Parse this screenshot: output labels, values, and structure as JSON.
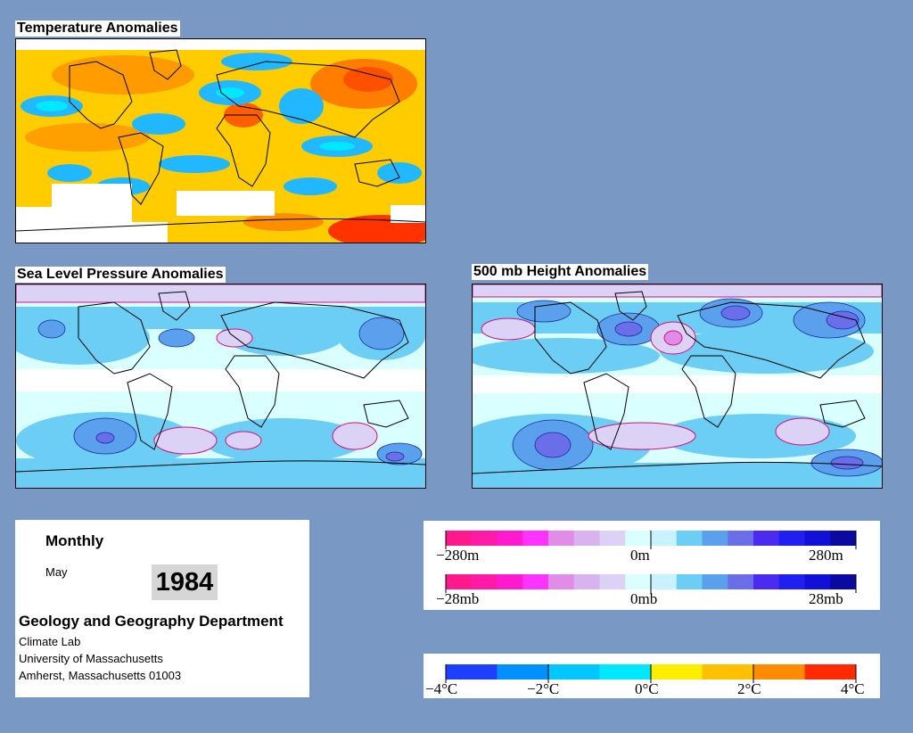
{
  "maps": {
    "temperature": {
      "title": "Temperature Anomalies"
    },
    "slp": {
      "title": "Sea Level Pressure Anomalies"
    },
    "height": {
      "title": "500 mb Height Anomalies"
    }
  },
  "info": {
    "frequency": "Monthly",
    "month": "May",
    "year": "1984",
    "department": "Geology and Geography Department",
    "address_lines": [
      "Climate Lab",
      "University of Massachusetts",
      "Amherst, Massachusetts 01003"
    ]
  },
  "legends": {
    "height": {
      "min_label": "−280m",
      "mid_label": "0m",
      "max_label": "280m"
    },
    "pressure": {
      "min_label": "−28mb",
      "mid_label": "0mb",
      "max_label": "28mb"
    },
    "temperature": {
      "labels": [
        "−4°C",
        "−2°C",
        "0°C",
        "2°C",
        "4°C"
      ]
    }
  },
  "colors": {
    "anomaly_scale": [
      "#ff1a8c",
      "#ff1aa8",
      "#ff1ad0",
      "#ff33ff",
      "#e08ce8",
      "#d9b3f0",
      "#dcd2f5",
      "#d9ffff",
      "#c9f2ff",
      "#6ccdf5",
      "#5aa0ec",
      "#6a6ee8",
      "#4b2bf0",
      "#1f1ff0",
      "#1010d8",
      "#0a0aa0"
    ],
    "temperature_scale": [
      "#1f3fff",
      "#0090ff",
      "#00c8ff",
      "#00e8ff",
      "#ffee00",
      "#ffc000",
      "#ff8c00",
      "#ff2a00"
    ]
  }
}
